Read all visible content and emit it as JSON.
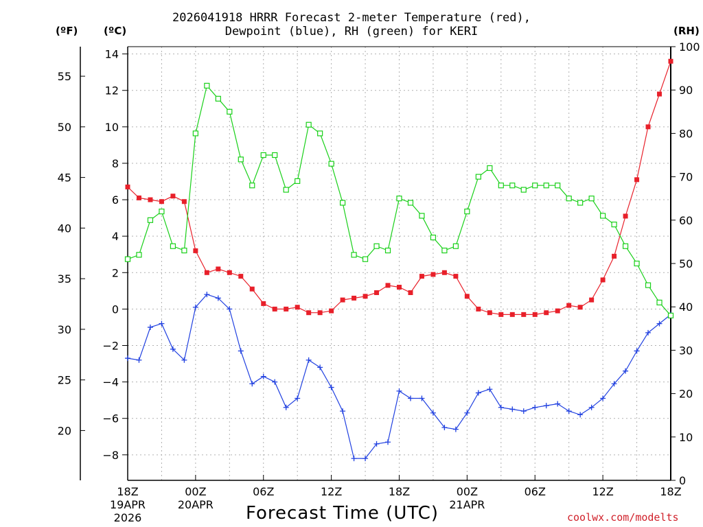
{
  "chart_data": {
    "type": "line",
    "title_line1": "2026041918 HRRR Forecast 2-meter Temperature (red),",
    "title_line2": "Dewpoint (blue), RH (green) for KERI",
    "xlabel": "Forecast Time (UTC)",
    "credit": "coolwx.com/modelts",
    "units": {
      "fahrenheit": "(ºF)",
      "celsius": "(ºC)",
      "rh": "(RH)"
    },
    "x_hours": {
      "min": 0,
      "max": 48
    },
    "x_ticks": [
      {
        "hour": 0,
        "lines": [
          "18Z",
          "19APR",
          "2026"
        ]
      },
      {
        "hour": 6,
        "lines": [
          "00Z",
          "20APR"
        ]
      },
      {
        "hour": 12,
        "lines": [
          "06Z"
        ]
      },
      {
        "hour": 18,
        "lines": [
          "12Z"
        ]
      },
      {
        "hour": 24,
        "lines": [
          "18Z"
        ]
      },
      {
        "hour": 30,
        "lines": [
          "00Z",
          "21APR"
        ]
      },
      {
        "hour": 36,
        "lines": [
          "06Z"
        ]
      },
      {
        "hour": 42,
        "lines": [
          "12Z"
        ]
      },
      {
        "hour": 48,
        "lines": [
          "18Z"
        ]
      }
    ],
    "y_celsius": {
      "min": -9.4,
      "max": 14.4,
      "ticks": [
        "-8",
        "-6",
        "-4",
        "-2",
        "0",
        "2",
        "4",
        "6",
        "8",
        "10",
        "12",
        "14"
      ]
    },
    "y_fahrenheit": {
      "ticks": [
        "20",
        "25",
        "30",
        "35",
        "40",
        "45",
        "50",
        "55"
      ]
    },
    "y_rh": {
      "min": 0,
      "max": 100,
      "ticks": [
        "0",
        "10",
        "20",
        "30",
        "40",
        "50",
        "60",
        "70",
        "80",
        "90",
        "100"
      ]
    },
    "colors": {
      "temperature": "#e8202a",
      "dewpoint": "#2040e0",
      "rh": "#18d018",
      "grid": "#b0b0b0",
      "axis": "#000000"
    },
    "series": [
      {
        "name": "Temperature",
        "axis": "celsius",
        "marker": "filled-square",
        "values": [
          6.7,
          6.1,
          6.0,
          5.9,
          6.2,
          5.9,
          3.2,
          2.0,
          2.2,
          2.0,
          1.8,
          1.1,
          0.3,
          0.0,
          0.0,
          0.1,
          -0.2,
          -0.2,
          -0.1,
          0.5,
          0.6,
          0.7,
          0.9,
          1.3,
          1.2,
          0.9,
          1.8,
          1.9,
          2.0,
          1.8,
          0.7,
          0.0,
          -0.2,
          -0.3,
          -0.3,
          -0.3,
          -0.3,
          -0.2,
          -0.1,
          0.2,
          0.1,
          0.5,
          1.6,
          2.9,
          5.1,
          7.1,
          10.0,
          11.8,
          13.6
        ]
      },
      {
        "name": "Dewpoint",
        "axis": "celsius",
        "marker": "plus",
        "values": [
          -2.7,
          -2.8,
          -1.0,
          -0.8,
          -2.2,
          -2.8,
          0.1,
          0.8,
          0.6,
          0.0,
          -2.3,
          -4.1,
          -3.7,
          -4.0,
          -5.4,
          -4.9,
          -2.8,
          -3.2,
          -4.3,
          -5.6,
          -8.2,
          -8.2,
          -7.4,
          -7.3,
          -4.5,
          -4.9,
          -4.9,
          -5.7,
          -6.5,
          -6.6,
          -5.7,
          -4.6,
          -4.4,
          -5.4,
          -5.5,
          -5.6,
          -5.4,
          -5.3,
          -5.2,
          -5.6,
          -5.8,
          -5.4,
          -4.9,
          -4.1,
          -3.4,
          -2.3,
          -1.3,
          -0.8,
          -0.3
        ]
      },
      {
        "name": "RH",
        "axis": "rh",
        "marker": "open-square",
        "values": [
          51,
          52,
          60,
          62,
          54,
          53,
          80,
          91,
          88,
          85,
          74,
          68,
          75,
          75,
          67,
          69,
          82,
          80,
          73,
          64,
          52,
          51,
          54,
          53,
          65,
          64,
          61,
          56,
          53,
          54,
          62,
          70,
          72,
          68,
          68,
          67,
          68,
          68,
          68,
          65,
          64,
          65,
          61,
          59,
          54,
          50,
          45,
          41,
          38
        ]
      }
    ]
  }
}
